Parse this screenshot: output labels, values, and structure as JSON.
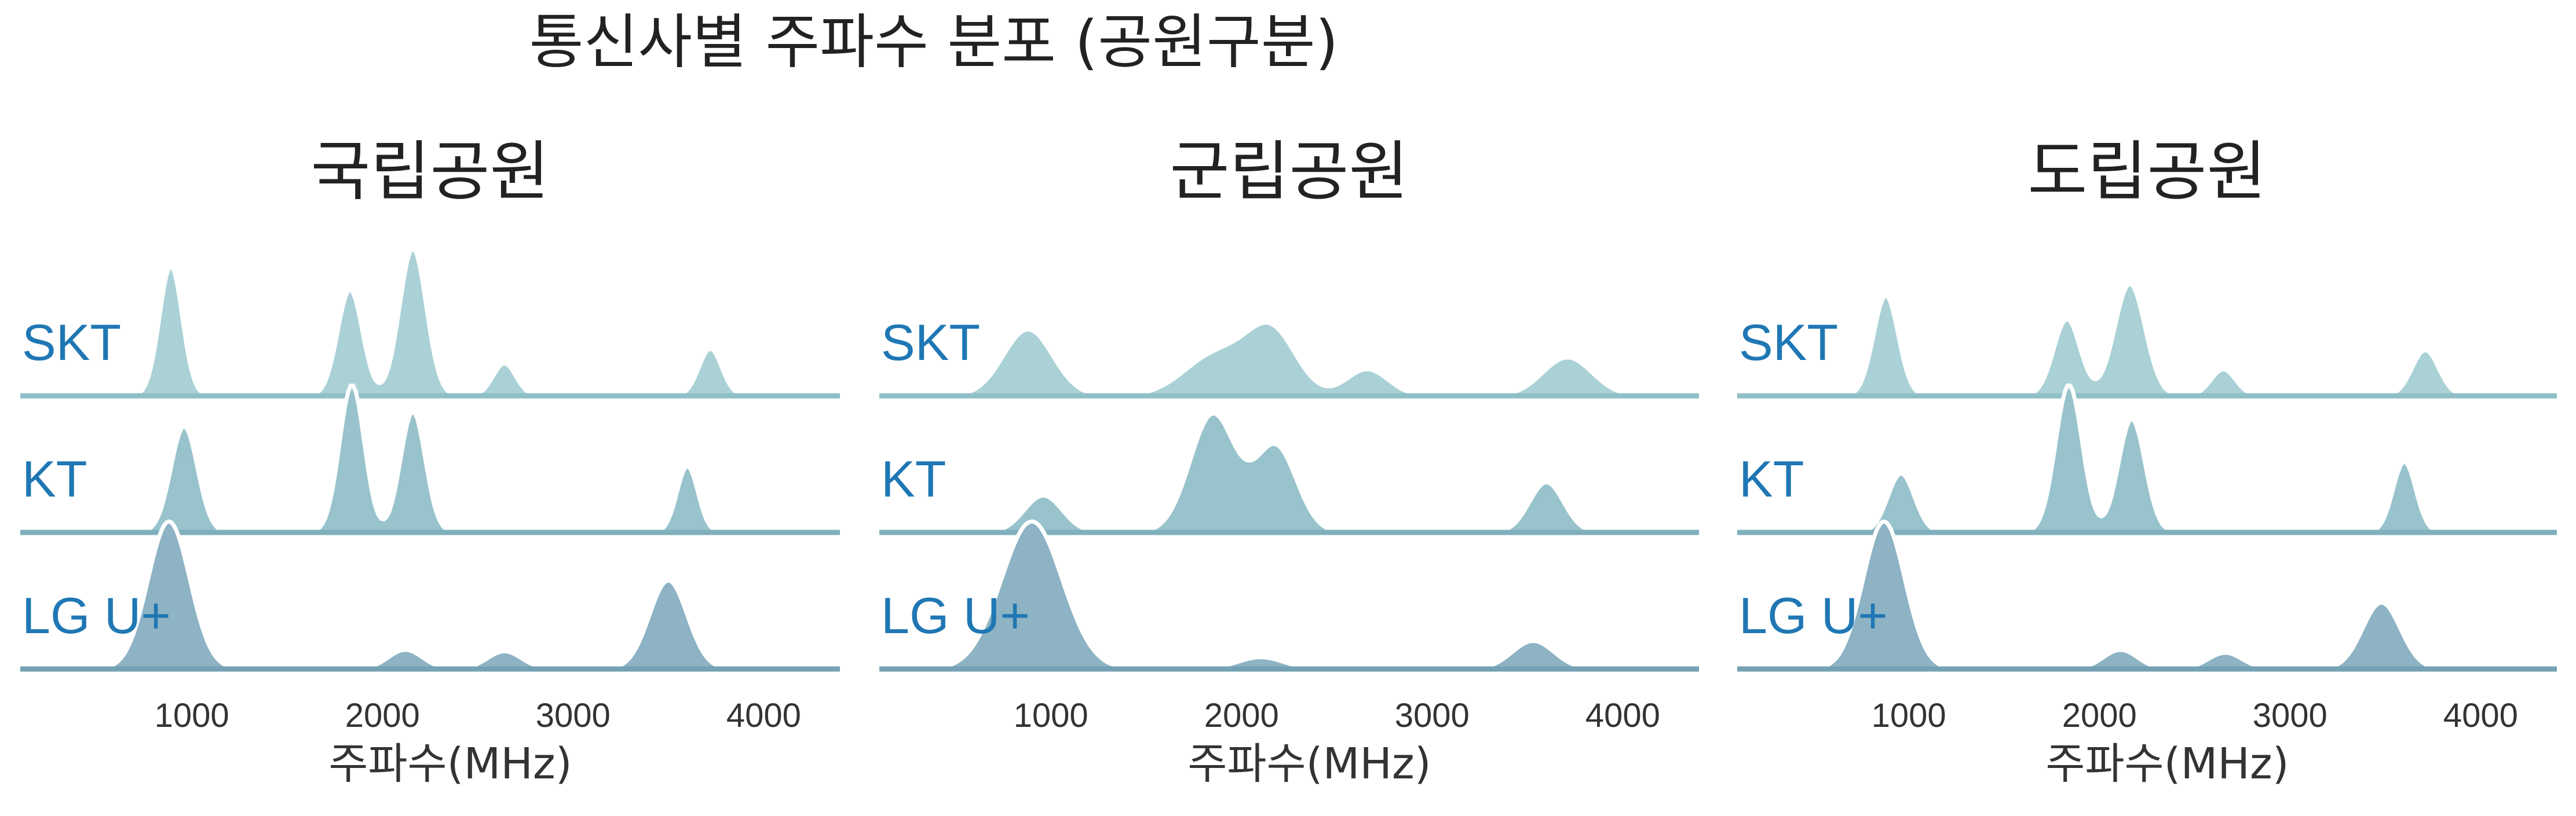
{
  "suptitle": "통신사별 주파수 분포 (공원구분)",
  "colors": {
    "label": "#1f77b4",
    "SKT": "#a9d1d6",
    "KT": "#98c3cc",
    "LG U+": "#8db3c4",
    "baseline_SKT": "#8fbfc7",
    "baseline_KT": "#7fb0bc",
    "baseline_LGU": "#74a2b4"
  },
  "chart_data": [
    {
      "type": "area",
      "title": "국립공원",
      "xlabel": "주파수(MHz)",
      "xticks": [
        1000,
        2000,
        3000,
        4000
      ],
      "xlim": [
        100,
        4400
      ],
      "series": [
        {
          "name": "SKT",
          "peaks": [
            {
              "mu": 890,
              "sigma": 60,
              "amp": 0.88
            },
            {
              "mu": 1830,
              "sigma": 65,
              "amp": 0.72
            },
            {
              "mu": 2160,
              "sigma": 70,
              "amp": 1.0
            },
            {
              "mu": 2640,
              "sigma": 60,
              "amp": 0.22
            },
            {
              "mu": 3720,
              "sigma": 60,
              "amp": 0.32
            }
          ]
        },
        {
          "name": "KT",
          "peaks": [
            {
              "mu": 960,
              "sigma": 70,
              "amp": 0.72
            },
            {
              "mu": 1840,
              "sigma": 65,
              "amp": 1.0
            },
            {
              "mu": 2160,
              "sigma": 65,
              "amp": 0.82
            },
            {
              "mu": 3600,
              "sigma": 55,
              "amp": 0.45
            }
          ]
        },
        {
          "name": "LG U+",
          "peaks": [
            {
              "mu": 880,
              "sigma": 110,
              "amp": 1.0
            },
            {
              "mu": 2120,
              "sigma": 90,
              "amp": 0.13
            },
            {
              "mu": 2640,
              "sigma": 90,
              "amp": 0.12
            },
            {
              "mu": 3500,
              "sigma": 100,
              "amp": 0.6
            }
          ]
        }
      ]
    },
    {
      "type": "area",
      "title": "군립공원",
      "xlabel": "주파수(MHz)",
      "xticks": [
        1000,
        2000,
        3000,
        4000
      ],
      "xlim": [
        100,
        4400
      ],
      "series": [
        {
          "name": "SKT",
          "peaks": [
            {
              "mu": 880,
              "sigma": 130,
              "amp": 0.45
            },
            {
              "mu": 1870,
              "sigma": 170,
              "amp": 0.28
            },
            {
              "mu": 2160,
              "sigma": 130,
              "amp": 0.42
            },
            {
              "mu": 2660,
              "sigma": 110,
              "amp": 0.18
            },
            {
              "mu": 3710,
              "sigma": 130,
              "amp": 0.26
            }
          ]
        },
        {
          "name": "KT",
          "peaks": [
            {
              "mu": 960,
              "sigma": 100,
              "amp": 0.25
            },
            {
              "mu": 1850,
              "sigma": 120,
              "amp": 0.8
            },
            {
              "mu": 2180,
              "sigma": 110,
              "amp": 0.58
            },
            {
              "mu": 3600,
              "sigma": 90,
              "amp": 0.34
            }
          ]
        },
        {
          "name": "LG U+",
          "peaks": [
            {
              "mu": 900,
              "sigma": 160,
              "amp": 1.0
            },
            {
              "mu": 2100,
              "sigma": 120,
              "amp": 0.08
            },
            {
              "mu": 3530,
              "sigma": 110,
              "amp": 0.19
            }
          ]
        }
      ]
    },
    {
      "type": "area",
      "title": "도립공원",
      "xlabel": "주파수(MHz)",
      "xticks": [
        1000,
        2000,
        3000,
        4000
      ],
      "xlim": [
        100,
        4400
      ],
      "series": [
        {
          "name": "SKT",
          "peaks": [
            {
              "mu": 880,
              "sigma": 65,
              "amp": 0.68
            },
            {
              "mu": 1830,
              "sigma": 70,
              "amp": 0.52
            },
            {
              "mu": 2160,
              "sigma": 80,
              "amp": 0.76
            },
            {
              "mu": 2650,
              "sigma": 65,
              "amp": 0.18
            },
            {
              "mu": 3710,
              "sigma": 70,
              "amp": 0.31
            }
          ]
        },
        {
          "name": "KT",
          "peaks": [
            {
              "mu": 960,
              "sigma": 70,
              "amp": 0.4
            },
            {
              "mu": 1840,
              "sigma": 70,
              "amp": 1.0
            },
            {
              "mu": 2170,
              "sigma": 70,
              "amp": 0.77
            },
            {
              "mu": 3600,
              "sigma": 60,
              "amp": 0.48
            }
          ]
        },
        {
          "name": "LG U+",
          "peaks": [
            {
              "mu": 870,
              "sigma": 110,
              "amp": 1.0
            },
            {
              "mu": 2110,
              "sigma": 90,
              "amp": 0.13
            },
            {
              "mu": 2660,
              "sigma": 90,
              "amp": 0.11
            },
            {
              "mu": 3480,
              "sigma": 100,
              "amp": 0.45
            }
          ]
        }
      ]
    }
  ]
}
